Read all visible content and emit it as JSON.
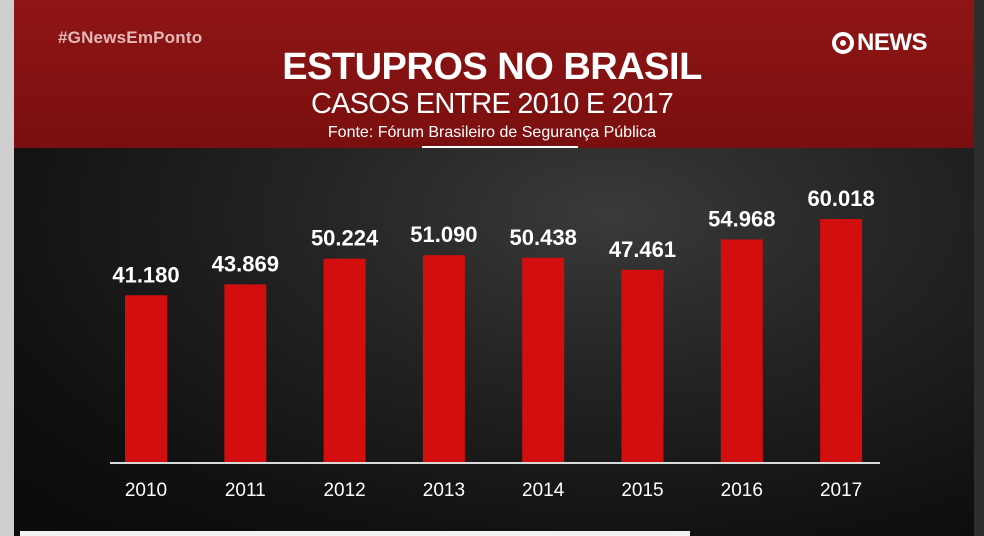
{
  "header": {
    "hashtag": "#GNewsEmPonto",
    "logo_text": "NEWS",
    "title": "ESTUPROS NO BRASIL",
    "subtitle": "CASOS ENTRE 2010 E 2017",
    "source": "Fonte: Fórum Brasileiro de Segurança Pública"
  },
  "colors": {
    "header": "#8f1515",
    "bar": "#d30e0e",
    "text": "#ffffff"
  },
  "chart_data": {
    "type": "bar",
    "title": "ESTUPROS NO BRASIL",
    "subtitle": "CASOS ENTRE 2010 E 2017",
    "xlabel": "",
    "ylabel": "",
    "categories": [
      "2010",
      "2011",
      "2012",
      "2013",
      "2014",
      "2015",
      "2016",
      "2017"
    ],
    "values": [
      41180,
      43869,
      50224,
      51090,
      50438,
      47461,
      54968,
      60018
    ],
    "value_labels": [
      "41.180",
      "43.869",
      "50.224",
      "51.090",
      "50.438",
      "47.461",
      "54.968",
      "60.018"
    ],
    "grid": false,
    "legend": "none"
  }
}
